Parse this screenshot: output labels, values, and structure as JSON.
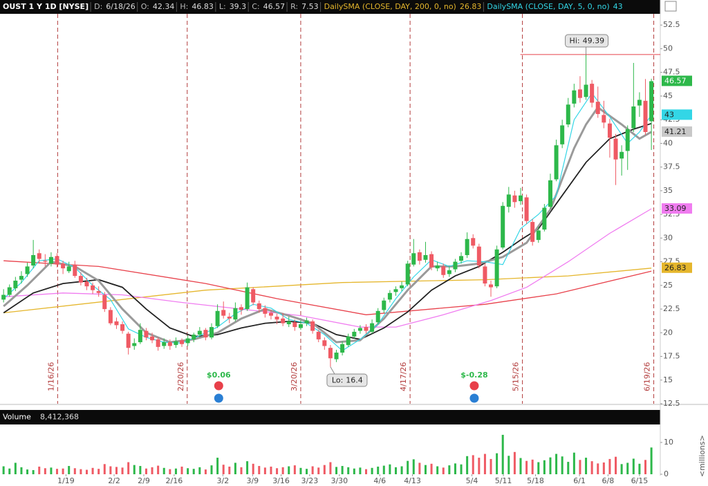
{
  "chart_data": {
    "type": "candlestick",
    "header": {
      "symbol": "OUST 1 Y 1D [NYSE]",
      "fields": [
        {
          "label": "D:",
          "value": "6/18/26"
        },
        {
          "label": "O:",
          "value": 42.34
        },
        {
          "label": "H:",
          "value": 46.83
        },
        {
          "label": "L:",
          "value": 39.3
        },
        {
          "label": "C:",
          "value": 46.57
        },
        {
          "label": "R:",
          "value": 7.53
        }
      ],
      "studies": [
        {
          "label": "DailySMA (CLOSE, DAY, 200, 0, no)",
          "value": 26.83,
          "color": "#e5b62c"
        },
        {
          "label": "DailySMA (CLOSE, DAY, 5, 0, no)",
          "value": 43,
          "color": "#33d6e6"
        }
      ]
    },
    "xlim": [
      -0.6,
      110.5
    ],
    "xticks": [
      {
        "value": 10.5,
        "label": "1/19"
      },
      {
        "value": 18.6,
        "label": "2/2"
      },
      {
        "value": 23.6,
        "label": "2/9"
      },
      {
        "value": 28.7,
        "label": "2/16"
      },
      {
        "value": 36.9,
        "label": "3/2"
      },
      {
        "value": 41.9,
        "label": "3/9"
      },
      {
        "value": 46.7,
        "label": "3/16"
      },
      {
        "value": 51.5,
        "label": "3/23"
      },
      {
        "value": 56.5,
        "label": "3/30"
      },
      {
        "value": 63.3,
        "label": "4/6"
      },
      {
        "value": 68.8,
        "label": "4/13"
      },
      {
        "value": 78.8,
        "label": "5/4"
      },
      {
        "value": 84.1,
        "label": "5/11"
      },
      {
        "value": 89.5,
        "label": "5/18"
      },
      {
        "value": 96.9,
        "label": "6/1"
      },
      {
        "value": 101.7,
        "label": "6/8"
      },
      {
        "value": 107,
        "label": "6/15"
      }
    ],
    "ylim": [
      12.5,
      55
    ],
    "yticks": [
      12.5,
      15,
      17.5,
      20,
      22.5,
      25,
      27.5,
      30,
      32.5,
      35,
      37.5,
      40,
      42.5,
      45,
      47.5,
      50,
      52.5
    ],
    "grid": false,
    "up_color": "#2db84a",
    "down_color": "#ef5a64",
    "candles": [
      [
        23.5,
        24.6,
        23.2,
        24
      ],
      [
        24,
        25.1,
        23.8,
        24.8
      ],
      [
        24.7,
        25.9,
        24.4,
        25.5
      ],
      [
        25.6,
        26.5,
        25.2,
        26
      ],
      [
        26.2,
        27.4,
        25.9,
        27
      ],
      [
        27.1,
        29.8,
        26.8,
        28.2
      ],
      [
        28.4,
        28.8,
        27.3,
        27.8
      ],
      [
        27.6,
        28.3,
        27,
        27.5
      ],
      [
        27.3,
        28.5,
        27,
        28
      ],
      [
        28.1,
        28.4,
        26.9,
        27.2
      ],
      [
        27.3,
        27.6,
        26.2,
        26.8
      ],
      [
        26.5,
        27.5,
        26.3,
        27
      ],
      [
        27.2,
        27.6,
        25.8,
        26
      ],
      [
        26,
        26.4,
        25,
        25.3
      ],
      [
        25.4,
        25.8,
        24.5,
        24.9
      ],
      [
        25,
        25.3,
        24.1,
        24.5
      ],
      [
        24.4,
        24.9,
        23.8,
        24.2
      ],
      [
        24,
        24.3,
        22.2,
        22.5
      ],
      [
        22.4,
        22.7,
        20.8,
        21
      ],
      [
        21.2,
        21.6,
        20.4,
        20.8
      ],
      [
        20.9,
        21.2,
        19.9,
        20.2
      ],
      [
        19.9,
        20.1,
        17.7,
        18.4
      ],
      [
        18.6,
        19.4,
        18.2,
        18.9
      ],
      [
        19,
        21,
        18.8,
        20.3
      ],
      [
        20.2,
        20.5,
        19.2,
        19.5
      ],
      [
        19.6,
        20,
        18.9,
        19.2
      ],
      [
        19.3,
        19.5,
        18.1,
        18.5
      ],
      [
        18.6,
        19.4,
        18.3,
        19
      ],
      [
        19,
        19.3,
        18.2,
        18.6
      ],
      [
        18.7,
        19.5,
        18.4,
        19.1
      ],
      [
        19.2,
        19.4,
        18.5,
        18.8
      ],
      [
        18.9,
        19.7,
        18.6,
        19.4
      ],
      [
        19.3,
        20,
        19,
        19.8
      ],
      [
        19.8,
        20.6,
        19.5,
        20.2
      ],
      [
        20.3,
        20.5,
        19.2,
        19.5
      ],
      [
        19.5,
        21,
        19.3,
        20.6
      ],
      [
        20.7,
        23,
        20.5,
        22.3
      ],
      [
        22.4,
        23.3,
        21.5,
        21.8
      ],
      [
        21.7,
        22.1,
        21,
        21.5
      ],
      [
        21.4,
        23.2,
        21.2,
        22.6
      ],
      [
        22.7,
        23,
        21.9,
        22.4
      ],
      [
        22.5,
        25.3,
        22.3,
        24.8
      ],
      [
        24.6,
        24.8,
        22.9,
        23.2
      ],
      [
        23.1,
        23.4,
        22.1,
        22.5
      ],
      [
        22.6,
        22.9,
        21.6,
        22
      ],
      [
        22.1,
        22.4,
        21.4,
        21.8
      ],
      [
        21.7,
        22,
        20.9,
        21.4
      ],
      [
        21.5,
        22.1,
        20.7,
        21
      ],
      [
        20.9,
        21.7,
        20.6,
        21.2
      ],
      [
        21.1,
        21.4,
        20.2,
        20.6
      ],
      [
        20.5,
        21.3,
        20.3,
        20.9
      ],
      [
        21,
        21.6,
        20.7,
        21.3
      ],
      [
        21.2,
        21.4,
        19.9,
        20.2
      ],
      [
        20.1,
        20.3,
        19,
        19.3
      ],
      [
        19.2,
        19.5,
        18.2,
        18.6
      ],
      [
        18.4,
        18.7,
        16.4,
        17.3
      ],
      [
        17.2,
        18.2,
        16.9,
        17.9
      ],
      [
        17.9,
        19.1,
        17.6,
        18.8
      ],
      [
        18.7,
        19.9,
        18.5,
        19.6
      ],
      [
        19.6,
        20.4,
        19.4,
        20.1
      ],
      [
        20.2,
        20.8,
        19.9,
        20.5
      ],
      [
        20.6,
        20.9,
        19.9,
        20.2
      ],
      [
        20.1,
        21.4,
        19.9,
        21
      ],
      [
        21.1,
        22.6,
        20.9,
        22.3
      ],
      [
        22.4,
        23.7,
        22.1,
        23.4
      ],
      [
        23.5,
        24.5,
        23.2,
        24.2
      ],
      [
        24.3,
        24.9,
        23.9,
        24.6
      ],
      [
        24.7,
        25.4,
        24.4,
        25
      ],
      [
        25.1,
        27.6,
        24.9,
        27.3
      ],
      [
        27.2,
        29.9,
        27,
        28.4
      ],
      [
        28.5,
        28.8,
        27.2,
        27.6
      ],
      [
        27.7,
        29.6,
        27.4,
        28.2
      ],
      [
        28.3,
        28.6,
        26.6,
        26.9
      ],
      [
        26.8,
        27.5,
        26.5,
        27.1
      ],
      [
        27,
        27.3,
        25.8,
        26.1
      ],
      [
        26.2,
        27,
        25.9,
        26.6
      ],
      [
        26.7,
        27.8,
        26.4,
        27.5
      ],
      [
        27.6,
        28.5,
        27.3,
        28.1
      ],
      [
        28.2,
        30.6,
        27.9,
        29.9
      ],
      [
        30,
        30.4,
        28.9,
        29.2
      ],
      [
        29.1,
        29.4,
        26.8,
        27.1
      ],
      [
        27,
        27.3,
        24.9,
        25.2
      ],
      [
        25.1,
        25.5,
        23.8,
        24.8
      ],
      [
        24.9,
        29.2,
        24.7,
        28.8
      ],
      [
        29,
        33.8,
        28.8,
        33.4
      ],
      [
        33.3,
        35.4,
        32.7,
        34.6
      ],
      [
        34.5,
        35,
        33.2,
        33.8
      ],
      [
        33.9,
        35.3,
        33.5,
        34.5
      ],
      [
        34.3,
        34.6,
        31.5,
        31.8
      ],
      [
        31.7,
        32,
        29.2,
        29.6
      ],
      [
        29.8,
        31.2,
        29.5,
        30.8
      ],
      [
        30.9,
        33.6,
        30.7,
        33.2
      ],
      [
        33.3,
        36.8,
        33.1,
        36.1
      ],
      [
        36.2,
        40.4,
        36,
        39.8
      ],
      [
        39.9,
        42.5,
        39.5,
        41.9
      ],
      [
        42,
        44.8,
        41.7,
        44.1
      ],
      [
        44.2,
        46.3,
        43.8,
        45.6
      ],
      [
        45.7,
        47.1,
        44.3,
        44.8
      ],
      [
        44.9,
        49.39,
        44.6,
        46.2
      ],
      [
        46.3,
        46.7,
        43.8,
        44.3
      ],
      [
        44.4,
        46,
        42.7,
        43.1
      ],
      [
        43,
        44.5,
        41.6,
        42.2
      ],
      [
        42.1,
        42.6,
        38.5,
        40.6
      ],
      [
        40.5,
        41,
        35.6,
        38.3
      ],
      [
        38.4,
        39.8,
        36.6,
        39.1
      ],
      [
        39.2,
        41.9,
        37.2,
        41.5
      ],
      [
        41.6,
        48.5,
        41.2,
        43.9
      ],
      [
        44,
        45.4,
        42.8,
        44.6
      ],
      [
        44.5,
        46.8,
        40.9,
        41.2
      ],
      [
        42.34,
        46.83,
        39.3,
        46.57
      ]
    ],
    "lines": [
      {
        "color": "#e5b62c",
        "width": 1.3,
        "x": [
          0,
          34,
          57,
          81,
          95,
          109
        ],
        "values": [
          22.1,
          24.5,
          25.3,
          25.6,
          26,
          26.83
        ]
      },
      {
        "color": "#e8404a",
        "width": 1.3,
        "x": [
          0,
          16,
          34,
          46,
          61,
          81,
          93,
          109
        ],
        "values": [
          27.6,
          27,
          25.2,
          23.6,
          21.9,
          23,
          24.1,
          26.5
        ]
      },
      {
        "color": "#f07cf0",
        "width": 1.3,
        "x": [
          0,
          10,
          20,
          30,
          40,
          50,
          60,
          66,
          74,
          82,
          88,
          95,
          102,
          109
        ],
        "values": [
          23.8,
          24.2,
          24,
          23.2,
          22.5,
          21.8,
          20.6,
          20.6,
          21.9,
          23.4,
          24.8,
          27.5,
          30.5,
          33.09
        ],
        "last_label": 33.09
      },
      {
        "color": "#222222",
        "width": 1.8,
        "x": [
          0,
          5,
          10,
          16,
          20,
          24,
          28,
          32,
          36,
          40,
          44,
          48,
          52,
          56,
          60,
          64,
          68,
          72,
          76,
          80,
          84,
          87,
          90,
          94,
          98,
          102,
          106,
          109
        ],
        "values": [
          22.1,
          24.2,
          25.2,
          25.6,
          24.8,
          22.5,
          20.5,
          19.6,
          19.8,
          20.5,
          21,
          21.2,
          21,
          19.8,
          19.3,
          20.5,
          22.2,
          24.5,
          26,
          27,
          28.5,
          29.8,
          31,
          34.5,
          38,
          40.5,
          41.5,
          42.1
        ]
      },
      {
        "color": "#9a9a9a",
        "width": 3,
        "x": [
          0,
          4,
          8,
          12,
          16,
          20,
          24,
          28,
          32,
          36,
          40,
          44,
          48,
          52,
          56,
          60,
          64,
          68,
          72,
          76,
          80,
          84,
          88,
          92,
          96,
          98,
          100,
          104,
          107,
          109
        ],
        "values": [
          22.8,
          25,
          27.5,
          27,
          25.5,
          22.5,
          20,
          19,
          19.3,
          20,
          21.5,
          22.5,
          21.8,
          21,
          19,
          19.2,
          21.5,
          24.5,
          27,
          27,
          27.3,
          28,
          29.5,
          33,
          39.5,
          42,
          43.8,
          42,
          40.5,
          41.21
        ],
        "last_label": 41.21
      },
      {
        "color": "#33d6e6",
        "width": 1.2,
        "x": [
          0,
          3,
          6,
          9,
          12,
          15,
          18,
          21,
          24,
          27,
          30,
          33,
          36,
          39,
          42,
          45,
          48,
          51,
          54,
          57,
          60,
          63,
          66,
          69,
          72,
          75,
          78,
          81,
          84,
          87,
          90,
          93,
          96,
          99,
          102,
          105,
          107,
          109
        ],
        "values": [
          23.6,
          25.3,
          27.6,
          27.8,
          26.9,
          25,
          23.5,
          20.4,
          19.5,
          19,
          18.9,
          19.7,
          20.6,
          22,
          23,
          22.6,
          21.4,
          21,
          19.8,
          18.1,
          19.3,
          20.9,
          23.6,
          25.9,
          27.7,
          27,
          27.6,
          27.5,
          27.2,
          31,
          32.5,
          34.5,
          42.5,
          45.3,
          42.8,
          40,
          41.2,
          43
        ]
      }
    ],
    "hi": {
      "label": "Hi:",
      "value": 49.39,
      "x": 98
    },
    "lo": {
      "label": "Lo:",
      "value": 16.4,
      "x": 55
    },
    "expirations": [
      {
        "x": 9.1,
        "label": "1/16/26"
      },
      {
        "x": 30.9,
        "label": "2/20/26"
      },
      {
        "x": 50,
        "label": "3/20/26"
      },
      {
        "x": 68.4,
        "label": "4/17/26"
      },
      {
        "x": 87.3,
        "label": "5/15/26"
      },
      {
        "x": 109.4,
        "label": "6/19/26"
      }
    ],
    "events": [
      {
        "x": 36.2,
        "label": "$0.06"
      },
      {
        "x": 79.2,
        "label": "$-0.28"
      }
    ],
    "volume": {
      "label": "Volume",
      "last": "8,412,368",
      "unit": "<millions>",
      "ylim": [
        0,
        15
      ],
      "yticks": [
        0,
        10
      ],
      "values": [
        2.5,
        1.8,
        3.6,
        2.2,
        1.5,
        1.3,
        2.4,
        1.9,
        2.1,
        1.7,
        1.8,
        2.6,
        1.9,
        1.6,
        1.4,
        2,
        1.7,
        3.2,
        2.5,
        2.3,
        2.1,
        3.8,
        2.9,
        2.6,
        1.8,
        2.2,
        2.7,
        2,
        1.6,
        1.8,
        2.4,
        1.9,
        1.7,
        2.2,
        1.5,
        2.8,
        5.2,
        3,
        2.4,
        3.6,
        2.2,
        4.1,
        3.3,
        2.6,
        2.1,
        2.4,
        1.9,
        2.2,
        2.5,
        2.8,
        2,
        1.7,
        2.5,
        2.1,
        2.9,
        3.8,
        2.3,
        2.6,
        2.2,
        1.8,
        2.1,
        1.6,
        2,
        2.4,
        2.7,
        3.1,
        2.2,
        2.5,
        4.2,
        4.7,
        3.6,
        2.9,
        3.3,
        2.5,
        2.1,
        2.8,
        3.4,
        3.1,
        5.7,
        6,
        5.2,
        6.4,
        4.8,
        6.6,
        12.4,
        5.8,
        7,
        5.1,
        4.2,
        4.6,
        3.8,
        4.4,
        5.3,
        6.4,
        5.6,
        3.9,
        6.8,
        4.5,
        5.2,
        4.1,
        3.4,
        3.7,
        4.8,
        5.5,
        3.2,
        3.6,
        4.9,
        3.3,
        4.5,
        8.412368
      ]
    }
  }
}
